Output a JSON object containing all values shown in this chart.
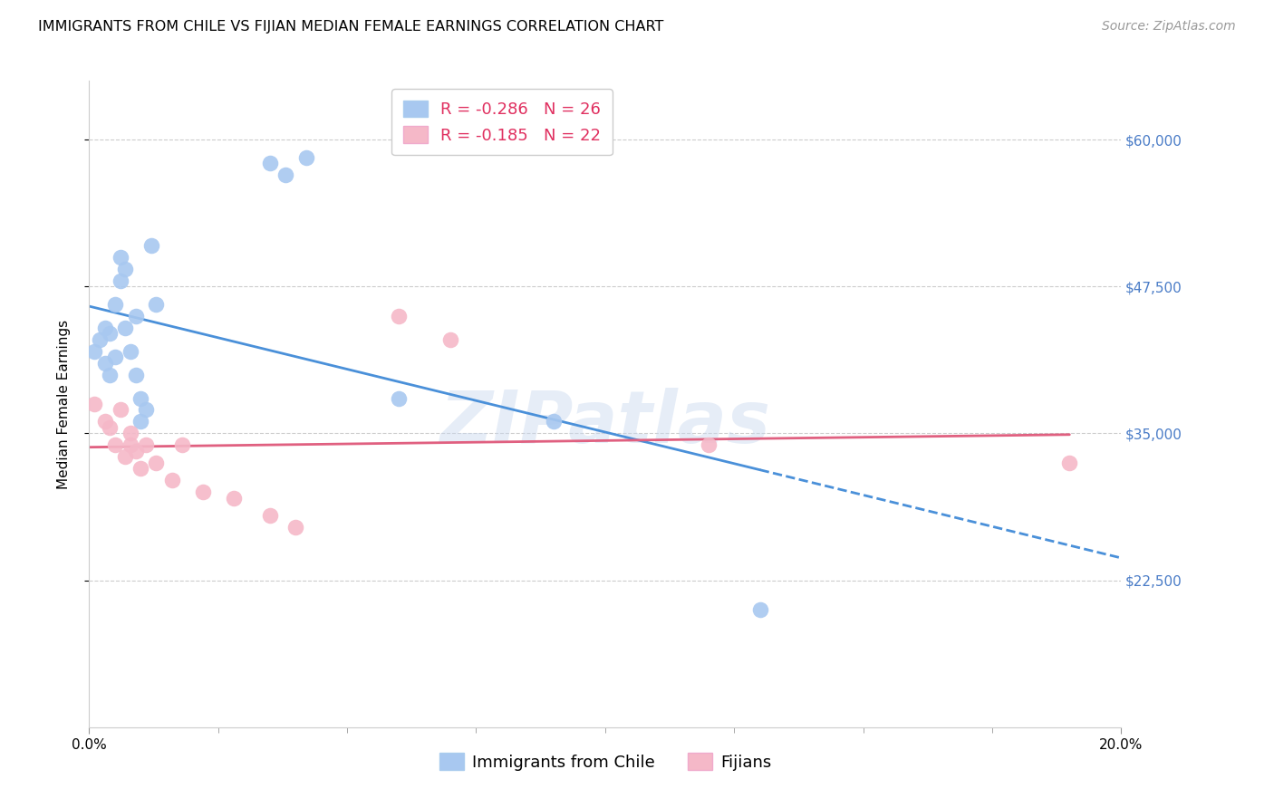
{
  "title": "IMMIGRANTS FROM CHILE VS FIJIAN MEDIAN FEMALE EARNINGS CORRELATION CHART",
  "source": "Source: ZipAtlas.com",
  "ylabel": "Median Female Earnings",
  "ytick_labels": [
    "$60,000",
    "$47,500",
    "$35,000",
    "$22,500"
  ],
  "ytick_values": [
    60000,
    47500,
    35000,
    22500
  ],
  "ymin": 10000,
  "ymax": 65000,
  "xmin": 0.0,
  "xmax": 0.2,
  "chile_color": "#a8c8f0",
  "fiji_color": "#f5b8c8",
  "chile_line_color": "#4a90d9",
  "fiji_line_color": "#e06080",
  "watermark": "ZIPatlas",
  "chile_x": [
    0.001,
    0.002,
    0.003,
    0.003,
    0.004,
    0.004,
    0.005,
    0.005,
    0.006,
    0.006,
    0.007,
    0.007,
    0.008,
    0.009,
    0.009,
    0.01,
    0.01,
    0.011,
    0.012,
    0.013,
    0.035,
    0.038,
    0.042,
    0.06,
    0.09,
    0.13
  ],
  "chile_y": [
    42000,
    43000,
    41000,
    44000,
    40000,
    43500,
    41500,
    46000,
    48000,
    50000,
    44000,
    49000,
    42000,
    45000,
    40000,
    38000,
    36000,
    37000,
    51000,
    46000,
    58000,
    57000,
    58500,
    38000,
    36000,
    20000
  ],
  "fiji_x": [
    0.001,
    0.003,
    0.004,
    0.005,
    0.006,
    0.007,
    0.008,
    0.008,
    0.009,
    0.01,
    0.011,
    0.013,
    0.016,
    0.018,
    0.022,
    0.028,
    0.035,
    0.04,
    0.06,
    0.07,
    0.12,
    0.19
  ],
  "fiji_y": [
    37500,
    36000,
    35500,
    34000,
    37000,
    33000,
    35000,
    34000,
    33500,
    32000,
    34000,
    32500,
    31000,
    34000,
    30000,
    29500,
    28000,
    27000,
    45000,
    43000,
    34000,
    32500
  ],
  "title_fontsize": 11.5,
  "axis_label_fontsize": 11,
  "tick_fontsize": 11,
  "legend_fontsize": 13,
  "source_fontsize": 10
}
